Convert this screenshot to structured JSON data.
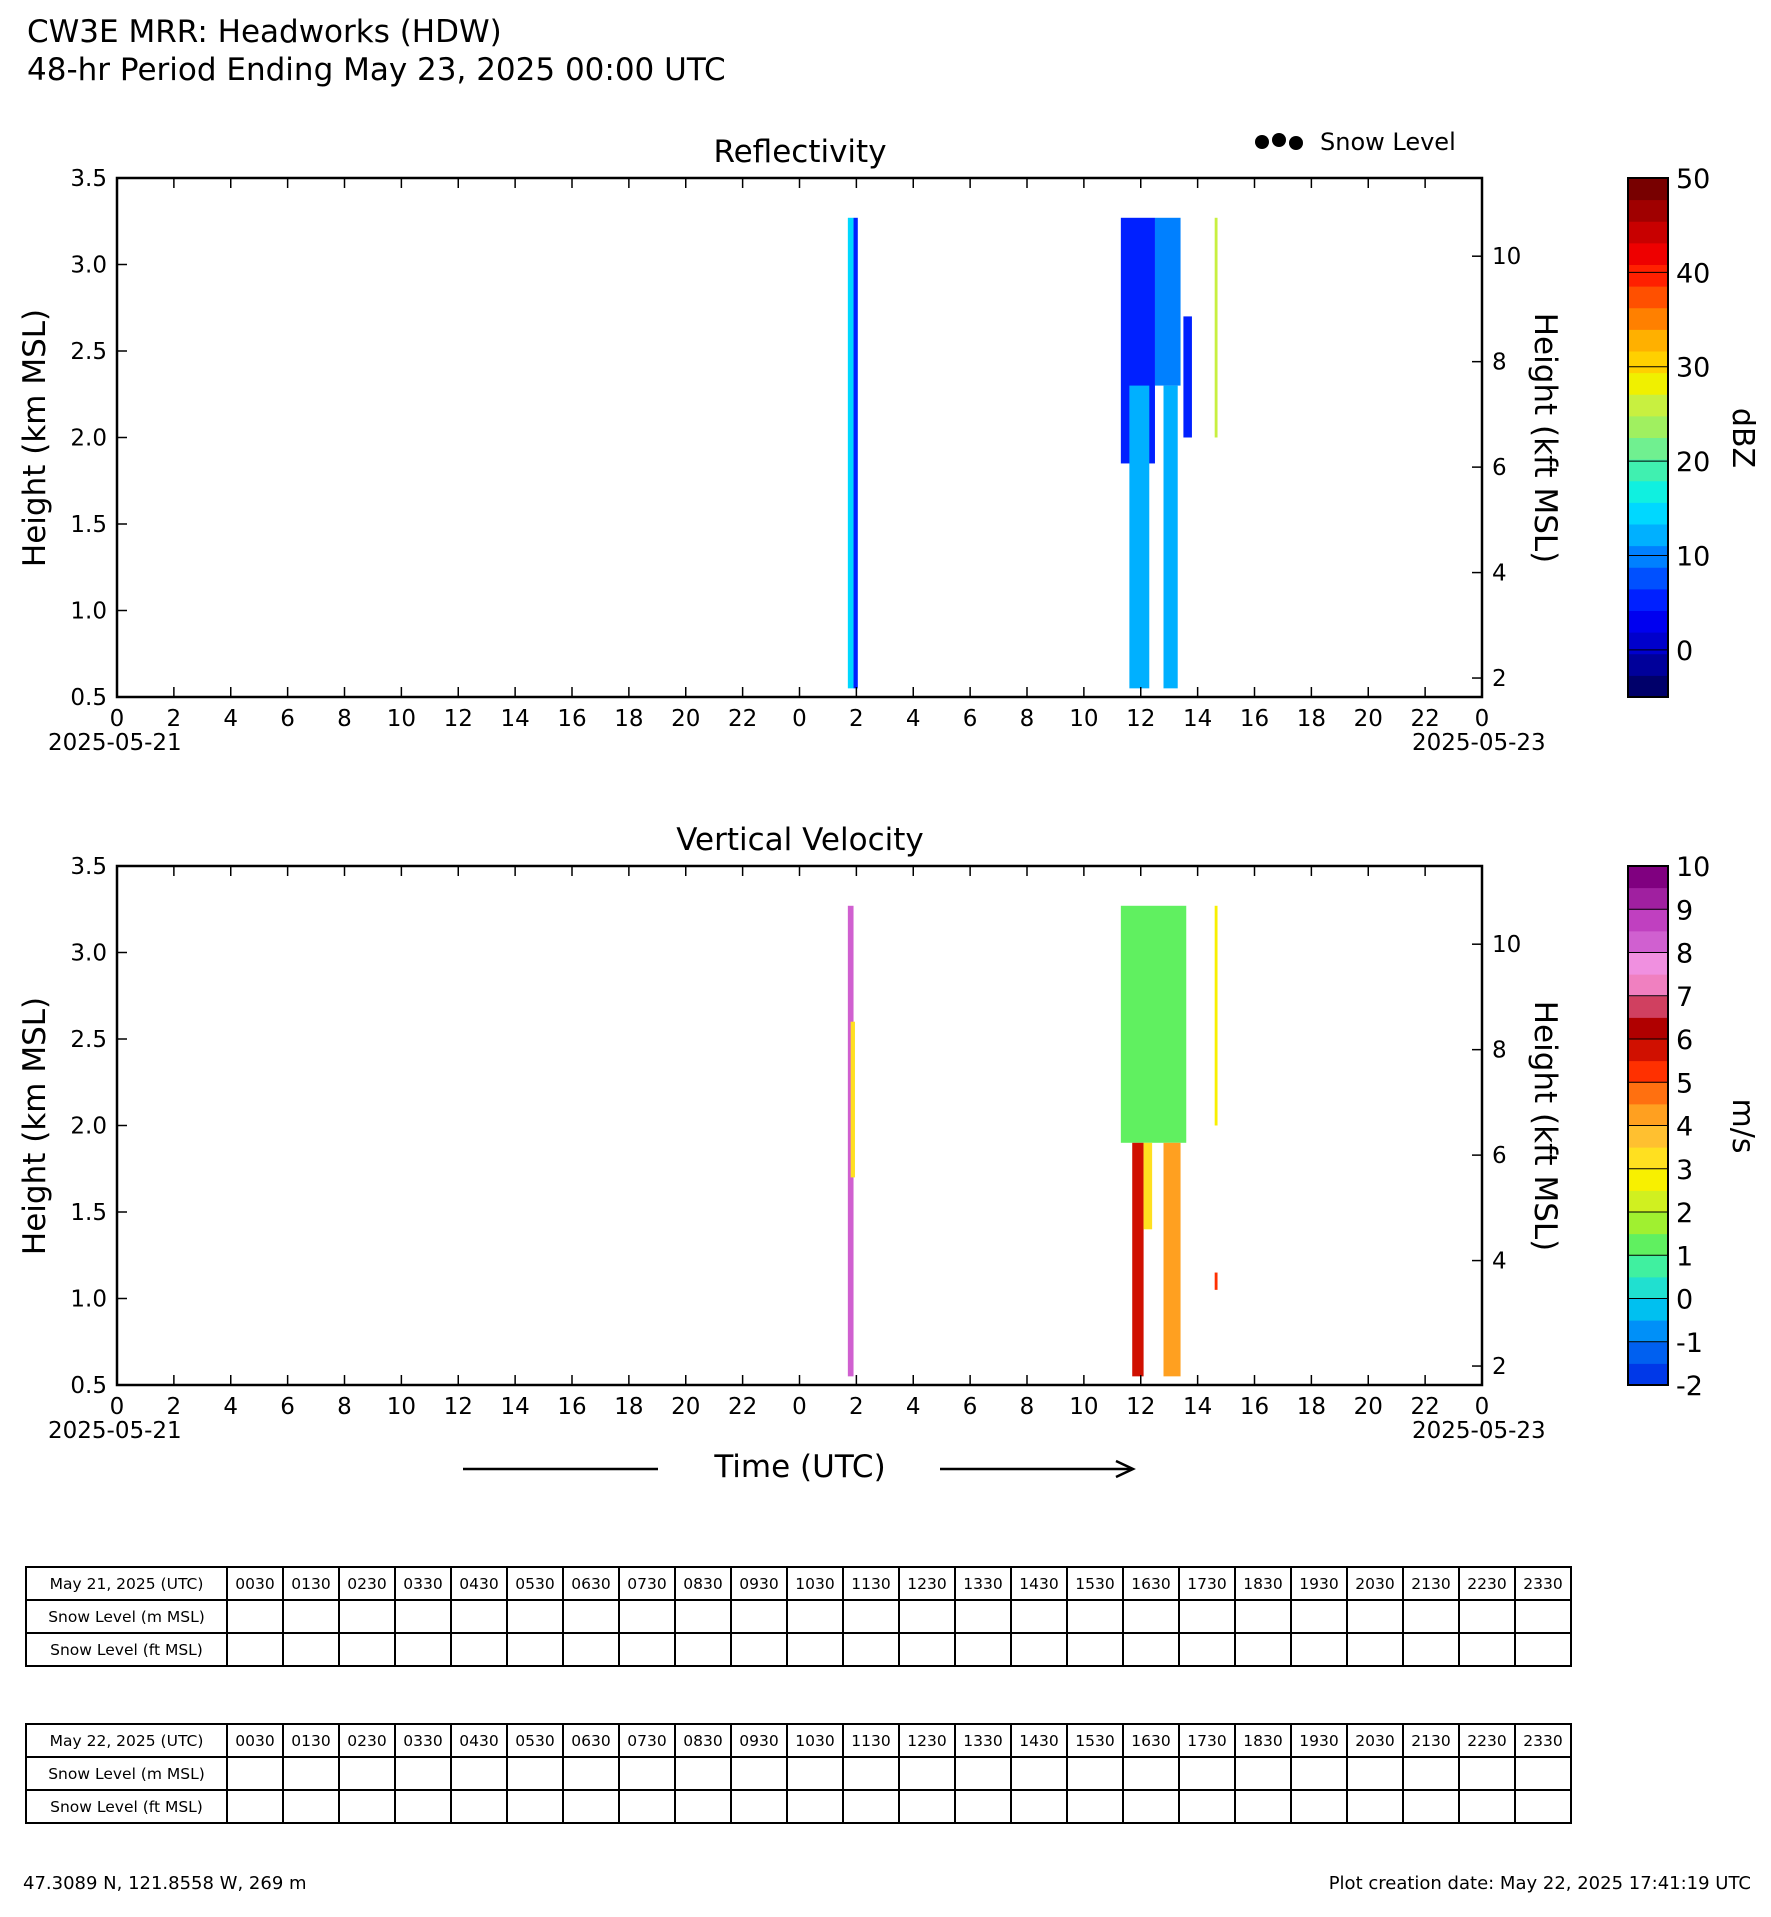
{
  "header": {
    "line1": "CW3E MRR: Headworks (HDW)",
    "line2": "48-hr Period Ending May 23, 2025 00:00 UTC"
  },
  "legend": {
    "snow_level_label": "Snow Level"
  },
  "xlabel": "Time (UTC)",
  "chart_data": [
    {
      "type": "heatmap",
      "title": "Reflectivity",
      "ylabel": "Height (km MSL)",
      "y2label": "Height (kft MSL)",
      "ylim": [
        0.5,
        3.5
      ],
      "yticks": [
        "0.5",
        "1.0",
        "1.5",
        "2.0",
        "2.5",
        "3.0",
        "3.5"
      ],
      "y2ticks": [
        "2",
        "4",
        "6",
        "8",
        "10"
      ],
      "xlim_hours": [
        0,
        48
      ],
      "xtick_labels": [
        "0",
        "2",
        "4",
        "6",
        "8",
        "10",
        "12",
        "14",
        "16",
        "18",
        "20",
        "22",
        "0",
        "2",
        "4",
        "6",
        "8",
        "10",
        "12",
        "14",
        "16",
        "18",
        "20",
        "22",
        "0"
      ],
      "x_start_date": "2025-05-21",
      "x_end_date": "2025-05-23",
      "colorbar": {
        "label": "dBZ",
        "range": [
          -5,
          50
        ],
        "ticks": [
          "0",
          "10",
          "20",
          "30",
          "40",
          "50"
        ],
        "colors": [
          "#00006a",
          "#00009a",
          "#0000cc",
          "#0000f0",
          "#0020ff",
          "#0050ff",
          "#0080ff",
          "#00b0ff",
          "#00d8ff",
          "#10f0e0",
          "#40f0b0",
          "#70f090",
          "#a0f060",
          "#c8f040",
          "#f0f000",
          "#ffd000",
          "#ffb000",
          "#ff8000",
          "#ff5000",
          "#ff2000",
          "#ee0000",
          "#c80000",
          "#a00000",
          "#780000"
        ]
      },
      "regions": [
        {
          "hours": [
            25.7,
            25.9
          ],
          "height_km": [
            0.55,
            3.27
          ],
          "dbz": 15
        },
        {
          "hours": [
            25.9,
            26.05
          ],
          "height_km": [
            0.55,
            3.27
          ],
          "dbz": 5
        },
        {
          "hours": [
            35.3,
            36.5
          ],
          "height_km": [
            1.85,
            3.27
          ],
          "dbz": 5
        },
        {
          "hours": [
            35.6,
            36.3
          ],
          "height_km": [
            0.55,
            2.3
          ],
          "dbz": 12
        },
        {
          "hours": [
            36.5,
            37.4
          ],
          "height_km": [
            2.3,
            3.27
          ],
          "dbz": 10
        },
        {
          "hours": [
            36.8,
            37.3
          ],
          "height_km": [
            0.55,
            2.3
          ],
          "dbz": 12
        },
        {
          "hours": [
            37.5,
            37.8
          ],
          "height_km": [
            2.0,
            2.7
          ],
          "dbz": 5
        },
        {
          "hours": [
            38.6,
            38.7
          ],
          "height_km": [
            2.0,
            3.27
          ],
          "dbz": 27
        }
      ]
    },
    {
      "type": "heatmap",
      "title": "Vertical Velocity",
      "ylabel": "Height (km MSL)",
      "y2label": "Height (kft MSL)",
      "ylim": [
        0.5,
        3.5
      ],
      "yticks": [
        "0.5",
        "1.0",
        "1.5",
        "2.0",
        "2.5",
        "3.0",
        "3.5"
      ],
      "y2ticks": [
        "2",
        "4",
        "6",
        "8",
        "10"
      ],
      "xlim_hours": [
        0,
        48
      ],
      "xtick_labels": [
        "0",
        "2",
        "4",
        "6",
        "8",
        "10",
        "12",
        "14",
        "16",
        "18",
        "20",
        "22",
        "0",
        "2",
        "4",
        "6",
        "8",
        "10",
        "12",
        "14",
        "16",
        "18",
        "20",
        "22",
        "0"
      ],
      "x_start_date": "2025-05-21",
      "x_end_date": "2025-05-23",
      "colorbar": {
        "label": "m/s",
        "range": [
          -2,
          10
        ],
        "ticks": [
          "-2",
          "-1",
          "0",
          "1",
          "2",
          "3",
          "4",
          "5",
          "6",
          "7",
          "8",
          "9",
          "10"
        ],
        "colors": [
          "#0038e8",
          "#0060f0",
          "#0090f8",
          "#00c0f0",
          "#20e0d0",
          "#40f0a0",
          "#60f060",
          "#a0f030",
          "#d0f020",
          "#f8f000",
          "#ffe020",
          "#ffc030",
          "#ffa020",
          "#ff7010",
          "#ff3000",
          "#d01000",
          "#b00000",
          "#d04060",
          "#f080c0",
          "#f090e0",
          "#d060d0",
          "#c040c0",
          "#a020a0",
          "#800080"
        ]
      },
      "regions": [
        {
          "hours": [
            25.7,
            25.9
          ],
          "height_km": [
            0.55,
            3.27
          ],
          "ms": 8
        },
        {
          "hours": [
            25.8,
            25.95
          ],
          "height_km": [
            1.7,
            2.6
          ],
          "ms": 3
        },
        {
          "hours": [
            35.3,
            37.6
          ],
          "height_km": [
            1.9,
            3.27
          ],
          "ms": 1.3
        },
        {
          "hours": [
            35.7,
            36.1
          ],
          "height_km": [
            0.55,
            1.9
          ],
          "ms": 5.5
        },
        {
          "hours": [
            36.1,
            36.4
          ],
          "height_km": [
            1.4,
            1.9
          ],
          "ms": 3
        },
        {
          "hours": [
            36.8,
            37.4
          ],
          "height_km": [
            0.55,
            1.9
          ],
          "ms": 4
        },
        {
          "hours": [
            38.6,
            38.7
          ],
          "height_km": [
            2.0,
            3.27
          ],
          "ms": 2.5
        },
        {
          "hours": [
            38.6,
            38.7
          ],
          "height_km": [
            1.05,
            1.15
          ],
          "ms": 5
        }
      ]
    }
  ],
  "tables": [
    {
      "date_label": "May 21, 2025 (UTC)",
      "times": [
        "0030",
        "0130",
        "0230",
        "0330",
        "0430",
        "0530",
        "0630",
        "0730",
        "0830",
        "0930",
        "1030",
        "1130",
        "1230",
        "1330",
        "1430",
        "1530",
        "1630",
        "1730",
        "1830",
        "1930",
        "2030",
        "2130",
        "2230",
        "2330"
      ],
      "rows": [
        "Snow Level (m MSL)",
        "Snow Level (ft MSL)"
      ]
    },
    {
      "date_label": "May 22, 2025 (UTC)",
      "times": [
        "0030",
        "0130",
        "0230",
        "0330",
        "0430",
        "0530",
        "0630",
        "0730",
        "0830",
        "0930",
        "1030",
        "1130",
        "1230",
        "1330",
        "1430",
        "1530",
        "1630",
        "1730",
        "1830",
        "1930",
        "2030",
        "2130",
        "2230",
        "2330"
      ],
      "rows": [
        "Snow Level (m MSL)",
        "Snow Level (ft MSL)"
      ]
    }
  ],
  "footer": {
    "location": "47.3089 N, 121.8558 W, 269 m",
    "created": "Plot creation date: May 22, 2025 17:41:19 UTC"
  }
}
